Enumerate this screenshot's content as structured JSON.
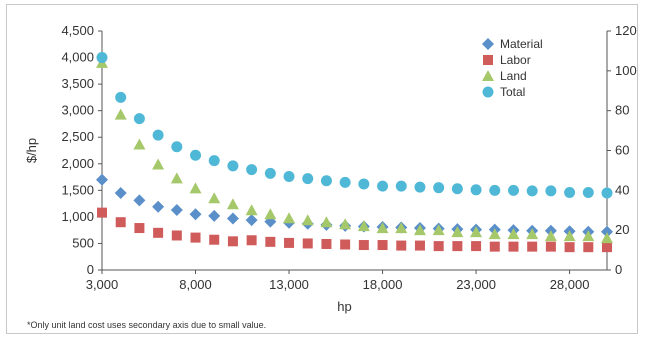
{
  "chart_data": {
    "type": "scatter",
    "title": "",
    "xlabel": "hp",
    "ylabel": "$/hp",
    "y2label": "",
    "xlim": [
      3000,
      30000
    ],
    "ylim": [
      0,
      4500
    ],
    "y2lim": [
      0,
      120
    ],
    "x_ticks": [
      3000,
      8000,
      13000,
      18000,
      23000,
      28000
    ],
    "x_tick_labels": [
      "3,000",
      "8,000",
      "13,000",
      "18,000",
      "23,000",
      "28,000"
    ],
    "y_ticks": [
      0,
      500,
      1000,
      1500,
      2000,
      2500,
      3000,
      3500,
      4000,
      4500
    ],
    "y_tick_labels": [
      "0",
      "500",
      "1,000",
      "1,500",
      "2,000",
      "2,500",
      "3,000",
      "3,500",
      "4,000",
      "4,500"
    ],
    "y2_ticks": [
      0,
      20,
      40,
      60,
      80,
      100,
      120
    ],
    "y2_tick_labels": [
      "0",
      "20",
      "40",
      "60",
      "80",
      "100",
      "120"
    ],
    "grid": false,
    "legend_position": "top-right",
    "x": [
      3000,
      4000,
      5000,
      6000,
      7000,
      8000,
      9000,
      10000,
      11000,
      12000,
      13000,
      14000,
      15000,
      16000,
      17000,
      18000,
      19000,
      20000,
      21000,
      22000,
      23000,
      24000,
      25000,
      26000,
      27000,
      28000,
      29000,
      30000
    ],
    "series": [
      {
        "name": "Material",
        "marker": "diamond",
        "color": "#5b8fc9",
        "axis": "primary",
        "values": [
          1700,
          1450,
          1310,
          1190,
          1130,
          1050,
          1020,
          970,
          940,
          910,
          890,
          870,
          850,
          830,
          820,
          810,
          800,
          790,
          780,
          770,
          760,
          760,
          750,
          740,
          740,
          730,
          720,
          720
        ]
      },
      {
        "name": "Labor",
        "marker": "square",
        "color": "#d05b5b",
        "axis": "primary",
        "values": [
          1080,
          900,
          790,
          700,
          650,
          610,
          570,
          540,
          560,
          530,
          510,
          500,
          490,
          480,
          470,
          470,
          460,
          460,
          450,
          450,
          450,
          440,
          440,
          440,
          440,
          430,
          430,
          430
        ]
      },
      {
        "name": "Land",
        "marker": "triangle",
        "color": "#a5c86a",
        "axis": "secondary",
        "values": [
          104,
          78,
          63,
          53,
          46,
          41,
          36,
          33,
          30,
          28,
          26,
          25,
          24,
          23,
          22,
          21,
          21,
          20,
          20,
          19,
          19,
          18,
          18,
          18,
          17,
          17,
          17,
          16
        ]
      },
      {
        "name": "Total",
        "marker": "circle",
        "color": "#4fb8d6",
        "axis": "primary",
        "values": [
          4000,
          3250,
          2850,
          2540,
          2320,
          2160,
          2060,
          1960,
          1890,
          1820,
          1760,
          1720,
          1680,
          1650,
          1620,
          1580,
          1580,
          1560,
          1550,
          1530,
          1510,
          1500,
          1500,
          1490,
          1490,
          1460,
          1460,
          1450
        ]
      }
    ]
  },
  "footnote": "*Only unit land cost uses secondary axis due to small value."
}
